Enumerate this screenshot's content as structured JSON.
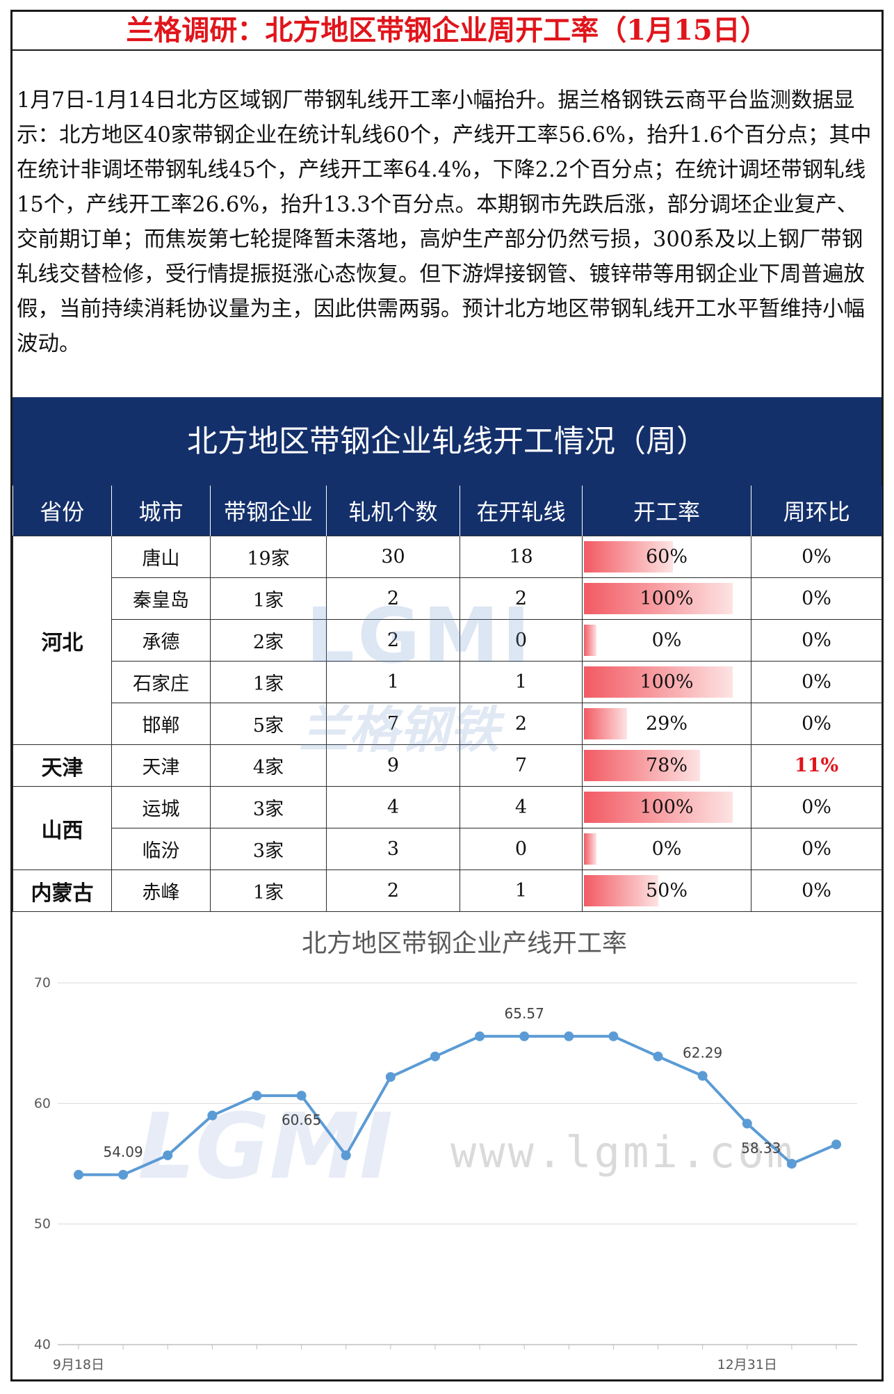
{
  "title": "兰格调研：北方地区带钢企业周开工率（1月15日）",
  "summary": "1月7日-1月14日北方区域钢厂带钢轧线开工率小幅抬升。据兰格钢铁云商平台监测数据显示：北方地区40家带钢企业在统计轧线60个，产线开工率56.6%，抬升1.6个百分点；其中在统计非调坯带钢轧线45个，产线开工率64.4%，下降2.2个百分点；在统计调坯带钢轧线15个，产线开工率26.6%，抬升13.3个百分点。本期钢市先跌后涨，部分调坯企业复产、交前期订单；而焦炭第七轮提降暂未落地，高炉生产部分仍然亏损，300系及以上钢厂带钢轧线交替检修，受行情提振挺涨心态恢复。但下游焊接钢管、镀锌带等用钢企业下周普遍放假，当前持续消耗协议量为主，因此供需两弱。预计北方地区带钢轧线开工水平暂维持小幅波动。",
  "table": {
    "title": "北方地区带钢企业轧线开工情况（周）",
    "headers": [
      "省份",
      "城市",
      "带钢企业",
      "轧机个数",
      "在开轧线",
      "开工率",
      "周环比"
    ],
    "rows": [
      {
        "province": "河北",
        "city": "唐山",
        "firms": "19家",
        "mills": "30",
        "running": "18",
        "rate": "60%",
        "rate_value": 60,
        "wow": "0%"
      },
      {
        "province": "",
        "city": "秦皇岛",
        "firms": "1家",
        "mills": "2",
        "running": "2",
        "rate": "100%",
        "rate_value": 100,
        "wow": "0%"
      },
      {
        "province": "",
        "city": "承德",
        "firms": "2家",
        "mills": "2",
        "running": "0",
        "rate": "0%",
        "rate_value": 0,
        "wow": "0%"
      },
      {
        "province": "",
        "city": "石家庄",
        "firms": "1家",
        "mills": "1",
        "running": "1",
        "rate": "100%",
        "rate_value": 100,
        "wow": "0%"
      },
      {
        "province": "",
        "city": "邯郸",
        "firms": "5家",
        "mills": "7",
        "running": "2",
        "rate": "29%",
        "rate_value": 29,
        "wow": "0%"
      },
      {
        "province": "天津",
        "city": "天津",
        "firms": "4家",
        "mills": "9",
        "running": "7",
        "rate": "78%",
        "rate_value": 78,
        "wow": "11%"
      },
      {
        "province": "山西",
        "city": "运城",
        "firms": "3家",
        "mills": "4",
        "running": "4",
        "rate": "100%",
        "rate_value": 100,
        "wow": "0%"
      },
      {
        "province": "",
        "city": "临汾",
        "firms": "3家",
        "mills": "3",
        "running": "0",
        "rate": "0%",
        "rate_value": 0,
        "wow": "0%"
      },
      {
        "province": "内蒙古",
        "city": "赤峰",
        "firms": "1家",
        "mills": "2",
        "running": "1",
        "rate": "50%",
        "rate_value": 50,
        "wow": "0%"
      }
    ]
  },
  "watermark": {
    "logo": "LGMI",
    "cn": "兰格钢铁",
    "url": "www.lgmi.com"
  },
  "chart_data": {
    "type": "line",
    "title": "北方地区带钢企业产线开工率",
    "xlabel": "",
    "ylabel": "",
    "ylim": [
      40,
      70
    ],
    "yticks": [
      40,
      50,
      60,
      70
    ],
    "x_tick_labels": [
      {
        "index": 0,
        "label": "9月18日"
      },
      {
        "index": 15,
        "label": "12月31日"
      }
    ],
    "grid": true,
    "color": "#5b9bd5",
    "series": [
      {
        "values": [
          54.09,
          54.09,
          55.7,
          59.0,
          60.65,
          60.65,
          55.7,
          62.2,
          63.9,
          65.57,
          65.57,
          65.57,
          65.57,
          63.9,
          62.29,
          58.33,
          55.0,
          56.6
        ]
      }
    ],
    "data_labels": [
      {
        "index": 1,
        "text": "54.09"
      },
      {
        "index": 5,
        "text": "60.65"
      },
      {
        "index": 10,
        "text": "65.57"
      },
      {
        "index": 14,
        "text": "62.29"
      },
      {
        "index": 15,
        "text": "58.33"
      }
    ]
  }
}
